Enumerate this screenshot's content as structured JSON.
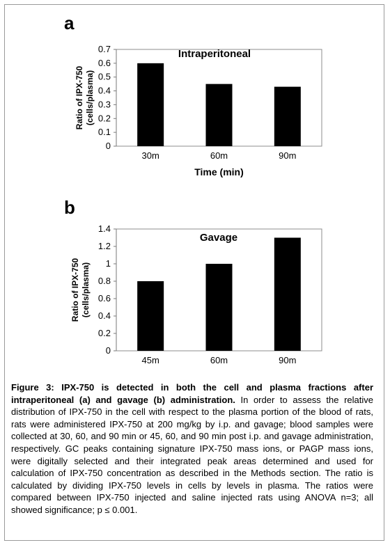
{
  "panels": [
    {
      "letter": "a"
    },
    {
      "letter": "b"
    }
  ],
  "chart_data": [
    {
      "type": "bar",
      "title": "Intraperitoneal",
      "categories": [
        "30m",
        "60m",
        "90m"
      ],
      "values": [
        0.6,
        0.45,
        0.43
      ],
      "xlabel": "Time (min)",
      "ylabel": "Ratio of IPX-750 (cells/plasma)",
      "ylim": [
        0,
        0.7
      ],
      "yticks": [
        0,
        0.1,
        0.2,
        0.3,
        0.4,
        0.5,
        0.6,
        0.7
      ],
      "ytick_labels": [
        "0",
        "0.1",
        "0.2",
        "0.3",
        "0.4",
        "0.5",
        "0.6",
        "0.7"
      ],
      "grid": false,
      "legend": "none",
      "bar_color": "#000000"
    },
    {
      "type": "bar",
      "title": "Gavage",
      "categories": [
        "45m",
        "60m",
        "90m"
      ],
      "values": [
        0.8,
        1.0,
        1.3
      ],
      "xlabel": "",
      "ylabel": "Ratio of IPX-750 (cells/plasma)",
      "ylim": [
        0,
        1.4
      ],
      "yticks": [
        0,
        0.2,
        0.4,
        0.6,
        0.8,
        1.0,
        1.2,
        1.4
      ],
      "ytick_labels": [
        "0",
        "0.2",
        "0.4",
        "0.6",
        "0.8",
        "1",
        "1.2",
        "1.4"
      ],
      "grid": false,
      "legend": "none",
      "bar_color": "#000000"
    }
  ],
  "caption": {
    "bold": "Figure 3: IPX-750 is detected in both the cell and plasma fractions after intraperitoneal (a) and gavage (b) administration.",
    "text": " In order to assess the relative distribution of IPX-750 in the cell with respect to the plasma portion of the blood of rats, rats were administered IPX-750 at 200 mg/kg by i.p. and gavage; blood samples were collected at 30, 60, and 90 min or 45, 60, and 90 min post i.p. and gavage administration, respectively. GC peaks containing signature IPX-750 mass ions, or PAGP mass ions, were digitally selected and their integrated peak areas determined and used for calculation of IPX-750 concentration as described in the Methods section. The ratio is calculated by dividing IPX-750 levels in cells by levels in plasma. The ratios were compared between IPX-750 injected and saline injected rats using ANOVA  n=3; all showed significance; p ≤ 0.001."
  }
}
